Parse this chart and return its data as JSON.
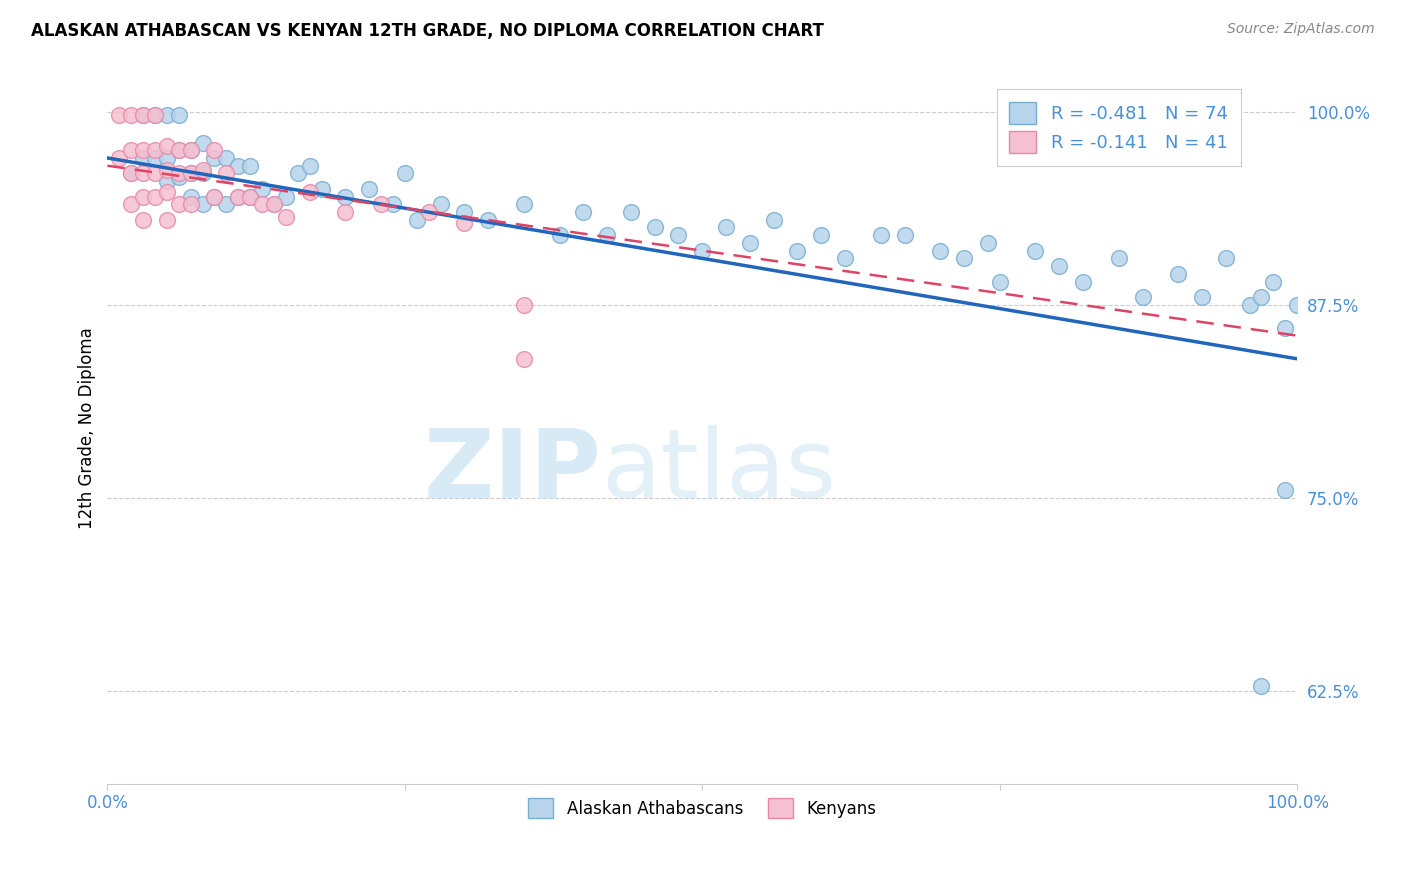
{
  "title": "ALASKAN ATHABASCAN VS KENYAN 12TH GRADE, NO DIPLOMA CORRELATION CHART",
  "source": "Source: ZipAtlas.com",
  "ylabel": "12th Grade, No Diploma",
  "ytick_labels": [
    "100.0%",
    "87.5%",
    "75.0%",
    "62.5%"
  ],
  "ytick_values": [
    1.0,
    0.875,
    0.75,
    0.625
  ],
  "xlim": [
    0.0,
    1.0
  ],
  "ylim": [
    0.565,
    1.025
  ],
  "blue_R": -0.481,
  "blue_N": 74,
  "pink_R": -0.141,
  "pink_N": 41,
  "blue_color": "#b8d4ea",
  "pink_color": "#f5c0cf",
  "blue_edge": "#7aaed0",
  "pink_edge": "#e888aa",
  "blue_line_color": "#2266bb",
  "pink_line_color": "#dd4466",
  "grid_color": "#cccccc",
  "axis_color": "#4a90d9",
  "blue_scatter_x": [
    0.02,
    0.03,
    0.03,
    0.04,
    0.04,
    0.05,
    0.05,
    0.05,
    0.06,
    0.06,
    0.06,
    0.07,
    0.07,
    0.07,
    0.08,
    0.08,
    0.08,
    0.09,
    0.09,
    0.1,
    0.1,
    0.11,
    0.11,
    0.12,
    0.12,
    0.13,
    0.14,
    0.15,
    0.16,
    0.17,
    0.18,
    0.2,
    0.22,
    0.24,
    0.25,
    0.26,
    0.28,
    0.3,
    0.32,
    0.35,
    0.38,
    0.4,
    0.42,
    0.44,
    0.46,
    0.48,
    0.5,
    0.52,
    0.54,
    0.56,
    0.58,
    0.6,
    0.62,
    0.65,
    0.67,
    0.7,
    0.72,
    0.74,
    0.75,
    0.78,
    0.8,
    0.82,
    0.85,
    0.87,
    0.9,
    0.92,
    0.94,
    0.96,
    0.97,
    0.98,
    0.99,
    1.0,
    0.99,
    0.97
  ],
  "blue_scatter_y": [
    0.96,
    0.998,
    0.97,
    0.998,
    0.97,
    0.998,
    0.97,
    0.955,
    0.998,
    0.975,
    0.958,
    0.975,
    0.96,
    0.945,
    0.98,
    0.96,
    0.94,
    0.97,
    0.945,
    0.97,
    0.94,
    0.965,
    0.945,
    0.965,
    0.945,
    0.95,
    0.94,
    0.945,
    0.96,
    0.965,
    0.95,
    0.945,
    0.95,
    0.94,
    0.96,
    0.93,
    0.94,
    0.935,
    0.93,
    0.94,
    0.92,
    0.935,
    0.92,
    0.935,
    0.925,
    0.92,
    0.91,
    0.925,
    0.915,
    0.93,
    0.91,
    0.92,
    0.905,
    0.92,
    0.92,
    0.91,
    0.905,
    0.915,
    0.89,
    0.91,
    0.9,
    0.89,
    0.905,
    0.88,
    0.895,
    0.88,
    0.905,
    0.875,
    0.88,
    0.89,
    0.86,
    0.875,
    0.755,
    0.628
  ],
  "pink_scatter_x": [
    0.01,
    0.01,
    0.02,
    0.02,
    0.02,
    0.02,
    0.03,
    0.03,
    0.03,
    0.03,
    0.03,
    0.04,
    0.04,
    0.04,
    0.04,
    0.05,
    0.05,
    0.05,
    0.05,
    0.06,
    0.06,
    0.06,
    0.07,
    0.07,
    0.07,
    0.08,
    0.09,
    0.09,
    0.1,
    0.11,
    0.12,
    0.13,
    0.14,
    0.15,
    0.17,
    0.2,
    0.23,
    0.27,
    0.3,
    0.35,
    0.35
  ],
  "pink_scatter_y": [
    0.998,
    0.97,
    0.998,
    0.975,
    0.96,
    0.94,
    0.998,
    0.975,
    0.96,
    0.945,
    0.93,
    0.998,
    0.975,
    0.96,
    0.945,
    0.978,
    0.962,
    0.948,
    0.93,
    0.975,
    0.96,
    0.94,
    0.975,
    0.96,
    0.94,
    0.962,
    0.975,
    0.945,
    0.96,
    0.945,
    0.945,
    0.94,
    0.94,
    0.932,
    0.948,
    0.935,
    0.94,
    0.935,
    0.928,
    0.875,
    0.84
  ],
  "blue_line_x0": 0.0,
  "blue_line_x1": 1.0,
  "blue_line_y0": 0.97,
  "blue_line_y1": 0.84,
  "pink_line_x0": 0.0,
  "pink_line_x1": 1.0,
  "pink_line_y0": 0.965,
  "pink_line_y1": 0.855
}
